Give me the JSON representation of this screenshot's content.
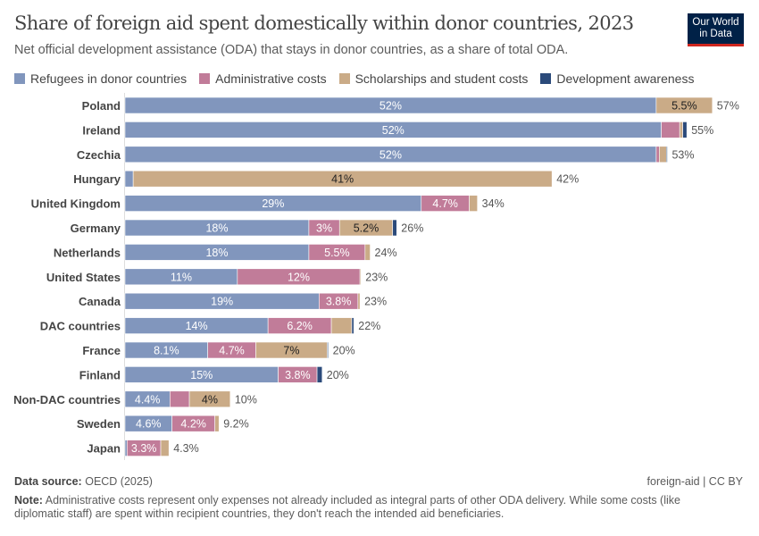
{
  "title": "Share of foreign aid spent domestically within donor countries, 2023",
  "subtitle": "Net official development assistance (ODA) that stays in donor countries, as a share of total ODA.",
  "logo": {
    "line1": "Our World",
    "line2": "in Data"
  },
  "chart_data": {
    "type": "bar",
    "orientation": "horizontal",
    "stacked": true,
    "xlim": [
      0,
      60
    ],
    "grid": false,
    "legend_placement": "top",
    "series": [
      {
        "name": "Refugees in donor countries",
        "color": "#8196bd"
      },
      {
        "name": "Administrative costs",
        "color": "#c17c99"
      },
      {
        "name": "Scholarships and student costs",
        "color": "#caab87"
      },
      {
        "name": "Development awareness",
        "color": "#2b4a7a"
      }
    ],
    "categories": [
      "Poland",
      "Ireland",
      "Czechia",
      "Hungary",
      "United Kingdom",
      "Germany",
      "Netherlands",
      "United States",
      "Canada",
      "DAC countries",
      "France",
      "Finland",
      "Non-DAC countries",
      "Sweden",
      "Japan"
    ],
    "values": [
      [
        52,
        0,
        5.5,
        0
      ],
      [
        52.5,
        1.8,
        0.3,
        0.4
      ],
      [
        52,
        0.3,
        0.7,
        0.1
      ],
      [
        0.8,
        0,
        41,
        0
      ],
      [
        29,
        4.7,
        0.8,
        0
      ],
      [
        18,
        3,
        5.2,
        0.4
      ],
      [
        18,
        5.5,
        0.5,
        0
      ],
      [
        11,
        12,
        0.1,
        0
      ],
      [
        19,
        3.8,
        0.2,
        0
      ],
      [
        14,
        6.2,
        2,
        0.2
      ],
      [
        8.1,
        4.7,
        7,
        0.1
      ],
      [
        15,
        3.8,
        0,
        0.5
      ],
      [
        4.4,
        1.9,
        4,
        0
      ],
      [
        4.6,
        4.2,
        0.4,
        0
      ],
      [
        0.2,
        3.3,
        0.8,
        0
      ]
    ],
    "segment_labels": [
      [
        "52%",
        "",
        "5.5%",
        ""
      ],
      [
        "52%",
        "",
        "",
        ""
      ],
      [
        "52%",
        "",
        "",
        ""
      ],
      [
        "",
        "",
        "41%",
        ""
      ],
      [
        "29%",
        "4.7%",
        "",
        ""
      ],
      [
        "18%",
        "3%",
        "5.2%",
        ""
      ],
      [
        "18%",
        "5.5%",
        "",
        ""
      ],
      [
        "11%",
        "12%",
        "",
        ""
      ],
      [
        "19%",
        "3.8%",
        "",
        ""
      ],
      [
        "14%",
        "6.2%",
        "",
        ""
      ],
      [
        "8.1%",
        "4.7%",
        "7%",
        ""
      ],
      [
        "15%",
        "3.8%",
        "",
        ""
      ],
      [
        "4.4%",
        "",
        "4%",
        ""
      ],
      [
        "4.6%",
        "4.2%",
        "",
        ""
      ],
      [
        "",
        "3.3%",
        "",
        ""
      ]
    ],
    "totals": [
      "57%",
      "55%",
      "53%",
      "42%",
      "34%",
      "26%",
      "24%",
      "23%",
      "23%",
      "22%",
      "20%",
      "20%",
      "10%",
      "9.2%",
      "4.3%"
    ]
  },
  "footer": {
    "source_label": "Data source:",
    "source": "OECD (2025)",
    "license": "foreign-aid | CC BY",
    "note_label": "Note:",
    "note": "Administrative costs represent only expenses not already included as integral parts of other ODA delivery. While some costs (like diplomatic staff) are spent within recipient countries, they don't reach the intended aid beneficiaries."
  }
}
